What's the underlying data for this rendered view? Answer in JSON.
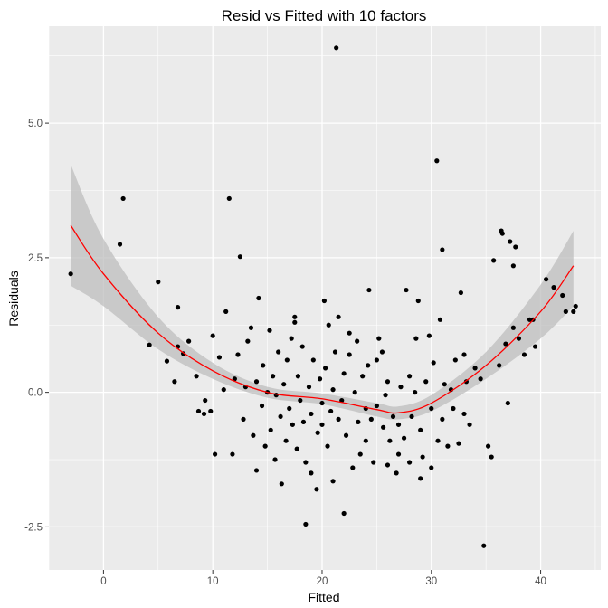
{
  "chart_data": {
    "type": "scatter",
    "title": "Resid vs Fitted with 10 factors",
    "xlabel": "Fitted",
    "ylabel": "Residuals",
    "xlim": [
      -5,
      45.5
    ],
    "ylim": [
      -3.3,
      6.8
    ],
    "xticks": [
      0,
      10,
      20,
      30,
      40
    ],
    "xtick_labels": [
      "0",
      "10",
      "20",
      "30",
      "40"
    ],
    "yticks": [
      -2.5,
      0.0,
      2.5,
      5.0
    ],
    "ytick_labels": [
      "-2.5",
      "0.0",
      "2.5",
      "5.0"
    ],
    "grid": true,
    "colors": {
      "panel": "#ebebeb",
      "grid": "#ffffff",
      "points": "#000000",
      "smooth_line": "#ff0000",
      "ribbon": "#bebebe"
    },
    "smooth": {
      "x": [
        -3,
        0,
        5,
        10,
        15,
        20,
        25,
        27,
        30,
        35,
        40,
        43
      ],
      "y": [
        3.1,
        2.2,
        1.1,
        0.4,
        0.0,
        -0.12,
        -0.32,
        -0.38,
        -0.2,
        0.5,
        1.5,
        2.35
      ],
      "lower": [
        1.98,
        1.6,
        0.8,
        0.25,
        -0.1,
        -0.22,
        -0.45,
        -0.5,
        -0.35,
        0.25,
        1.0,
        1.6
      ],
      "upper": [
        4.23,
        2.85,
        1.4,
        0.55,
        0.1,
        -0.02,
        -0.2,
        -0.26,
        -0.05,
        0.75,
        2.0,
        3.0
      ]
    },
    "points": [
      [
        -3,
        2.2
      ],
      [
        1.5,
        2.75
      ],
      [
        1.8,
        3.6
      ],
      [
        4.2,
        0.88
      ],
      [
        5,
        2.05
      ],
      [
        5.8,
        0.58
      ],
      [
        6.5,
        0.2
      ],
      [
        6.8,
        0.85
      ],
      [
        6.8,
        1.58
      ],
      [
        7.3,
        0.72
      ],
      [
        7.8,
        0.95
      ],
      [
        8.5,
        0.3
      ],
      [
        8.7,
        -0.35
      ],
      [
        9.2,
        -0.4
      ],
      [
        9.3,
        -0.15
      ],
      [
        9.8,
        -0.35
      ],
      [
        10,
        1.05
      ],
      [
        10.2,
        -1.15
      ],
      [
        10.6,
        0.65
      ],
      [
        11,
        0.05
      ],
      [
        11.2,
        1.5
      ],
      [
        11.5,
        3.6
      ],
      [
        11.8,
        -1.15
      ],
      [
        12,
        0.25
      ],
      [
        12.3,
        0.7
      ],
      [
        12.5,
        2.52
      ],
      [
        12.8,
        -0.5
      ],
      [
        13,
        0.1
      ],
      [
        13.2,
        0.95
      ],
      [
        13.5,
        1.2
      ],
      [
        13.7,
        -0.8
      ],
      [
        14,
        0.2
      ],
      [
        14,
        -1.45
      ],
      [
        14.2,
        1.75
      ],
      [
        14.5,
        -0.25
      ],
      [
        14.6,
        0.5
      ],
      [
        14.8,
        -1.0
      ],
      [
        15,
        0.0
      ],
      [
        15.2,
        1.15
      ],
      [
        15.3,
        -0.7
      ],
      [
        15.5,
        0.3
      ],
      [
        15.7,
        -1.25
      ],
      [
        15.8,
        -0.05
      ],
      [
        16,
        0.75
      ],
      [
        16.2,
        -0.45
      ],
      [
        16.3,
        -1.7
      ],
      [
        16.5,
        0.15
      ],
      [
        16.7,
        -0.9
      ],
      [
        16.8,
        0.6
      ],
      [
        17,
        -0.3
      ],
      [
        17.2,
        1.0
      ],
      [
        17.3,
        -0.6
      ],
      [
        17.5,
        1.3
      ],
      [
        17.5,
        1.4
      ],
      [
        17.7,
        -1.05
      ],
      [
        17.8,
        0.3
      ],
      [
        18,
        -0.15
      ],
      [
        18.2,
        0.85
      ],
      [
        18.3,
        -0.55
      ],
      [
        18.5,
        -2.45
      ],
      [
        18.5,
        -1.3
      ],
      [
        18.8,
        0.1
      ],
      [
        19,
        -0.4
      ],
      [
        19,
        -1.5
      ],
      [
        19.2,
        0.6
      ],
      [
        19.5,
        -1.8
      ],
      [
        19.6,
        -0.75
      ],
      [
        19.8,
        0.25
      ],
      [
        20,
        -0.2
      ],
      [
        20,
        -0.6
      ],
      [
        20.2,
        1.7
      ],
      [
        20.3,
        0.45
      ],
      [
        20.5,
        -1.0
      ],
      [
        20.6,
        1.25
      ],
      [
        20.8,
        -0.35
      ],
      [
        21,
        0.05
      ],
      [
        21,
        -1.65
      ],
      [
        21.2,
        0.75
      ],
      [
        21.3,
        6.4
      ],
      [
        21.5,
        -0.5
      ],
      [
        21.5,
        1.4
      ],
      [
        21.8,
        -0.15
      ],
      [
        22,
        0.35
      ],
      [
        22,
        -2.25
      ],
      [
        22.2,
        -0.8
      ],
      [
        22.5,
        0.7
      ],
      [
        22.5,
        1.1
      ],
      [
        22.8,
        -1.4
      ],
      [
        23,
        0.0
      ],
      [
        23.2,
        0.95
      ],
      [
        23.3,
        -0.55
      ],
      [
        23.5,
        -1.15
      ],
      [
        23.7,
        0.3
      ],
      [
        24,
        -0.3
      ],
      [
        24,
        -0.9
      ],
      [
        24.2,
        0.5
      ],
      [
        24.3,
        1.9
      ],
      [
        24.5,
        -0.5
      ],
      [
        24.7,
        -1.3
      ],
      [
        25,
        0.6
      ],
      [
        25,
        -0.25
      ],
      [
        25.2,
        1.0
      ],
      [
        25.5,
        0.75
      ],
      [
        25.6,
        -0.65
      ],
      [
        25.8,
        -0.05
      ],
      [
        26,
        0.2
      ],
      [
        26,
        -1.35
      ],
      [
        26.2,
        -0.9
      ],
      [
        26.5,
        -0.45
      ],
      [
        26.8,
        -1.5
      ],
      [
        27,
        -0.6
      ],
      [
        27,
        -1.15
      ],
      [
        27.2,
        0.1
      ],
      [
        27.5,
        -0.85
      ],
      [
        27.7,
        1.9
      ],
      [
        28,
        0.3
      ],
      [
        28,
        -1.3
      ],
      [
        28.2,
        -0.45
      ],
      [
        28.5,
        0.0
      ],
      [
        28.6,
        1.0
      ],
      [
        28.8,
        1.7
      ],
      [
        29,
        -0.7
      ],
      [
        29,
        -1.6
      ],
      [
        29.2,
        -1.2
      ],
      [
        29.5,
        0.2
      ],
      [
        29.8,
        1.05
      ],
      [
        30,
        -0.3
      ],
      [
        30,
        -1.4
      ],
      [
        30.2,
        0.55
      ],
      [
        30.5,
        4.3
      ],
      [
        30.6,
        -0.9
      ],
      [
        30.8,
        1.35
      ],
      [
        31,
        2.65
      ],
      [
        31,
        -0.5
      ],
      [
        31.2,
        0.15
      ],
      [
        31.5,
        -1.0
      ],
      [
        31.8,
        0.05
      ],
      [
        32,
        -0.3
      ],
      [
        32.2,
        0.6
      ],
      [
        32.5,
        -0.95
      ],
      [
        32.7,
        1.85
      ],
      [
        33,
        0.7
      ],
      [
        33,
        -0.4
      ],
      [
        33.2,
        0.2
      ],
      [
        33.5,
        -0.6
      ],
      [
        34,
        0.45
      ],
      [
        34.5,
        0.25
      ],
      [
        34.8,
        -2.85
      ],
      [
        35.2,
        -1.0
      ],
      [
        35.5,
        -1.2
      ],
      [
        35.7,
        2.45
      ],
      [
        36.2,
        0.5
      ],
      [
        36.4,
        3.0
      ],
      [
        36.5,
        2.95
      ],
      [
        36.8,
        0.9
      ],
      [
        37,
        -0.2
      ],
      [
        37.2,
        2.8
      ],
      [
        37.5,
        2.35
      ],
      [
        37.5,
        1.2
      ],
      [
        37.7,
        2.7
      ],
      [
        38,
        1.0
      ],
      [
        38.5,
        0.7
      ],
      [
        39,
        1.35
      ],
      [
        39.3,
        1.35
      ],
      [
        39.5,
        0.85
      ],
      [
        40.5,
        2.1
      ],
      [
        41.2,
        1.95
      ],
      [
        42,
        1.8
      ],
      [
        42.3,
        1.5
      ],
      [
        43,
        1.5
      ],
      [
        43.2,
        1.6
      ]
    ]
  }
}
